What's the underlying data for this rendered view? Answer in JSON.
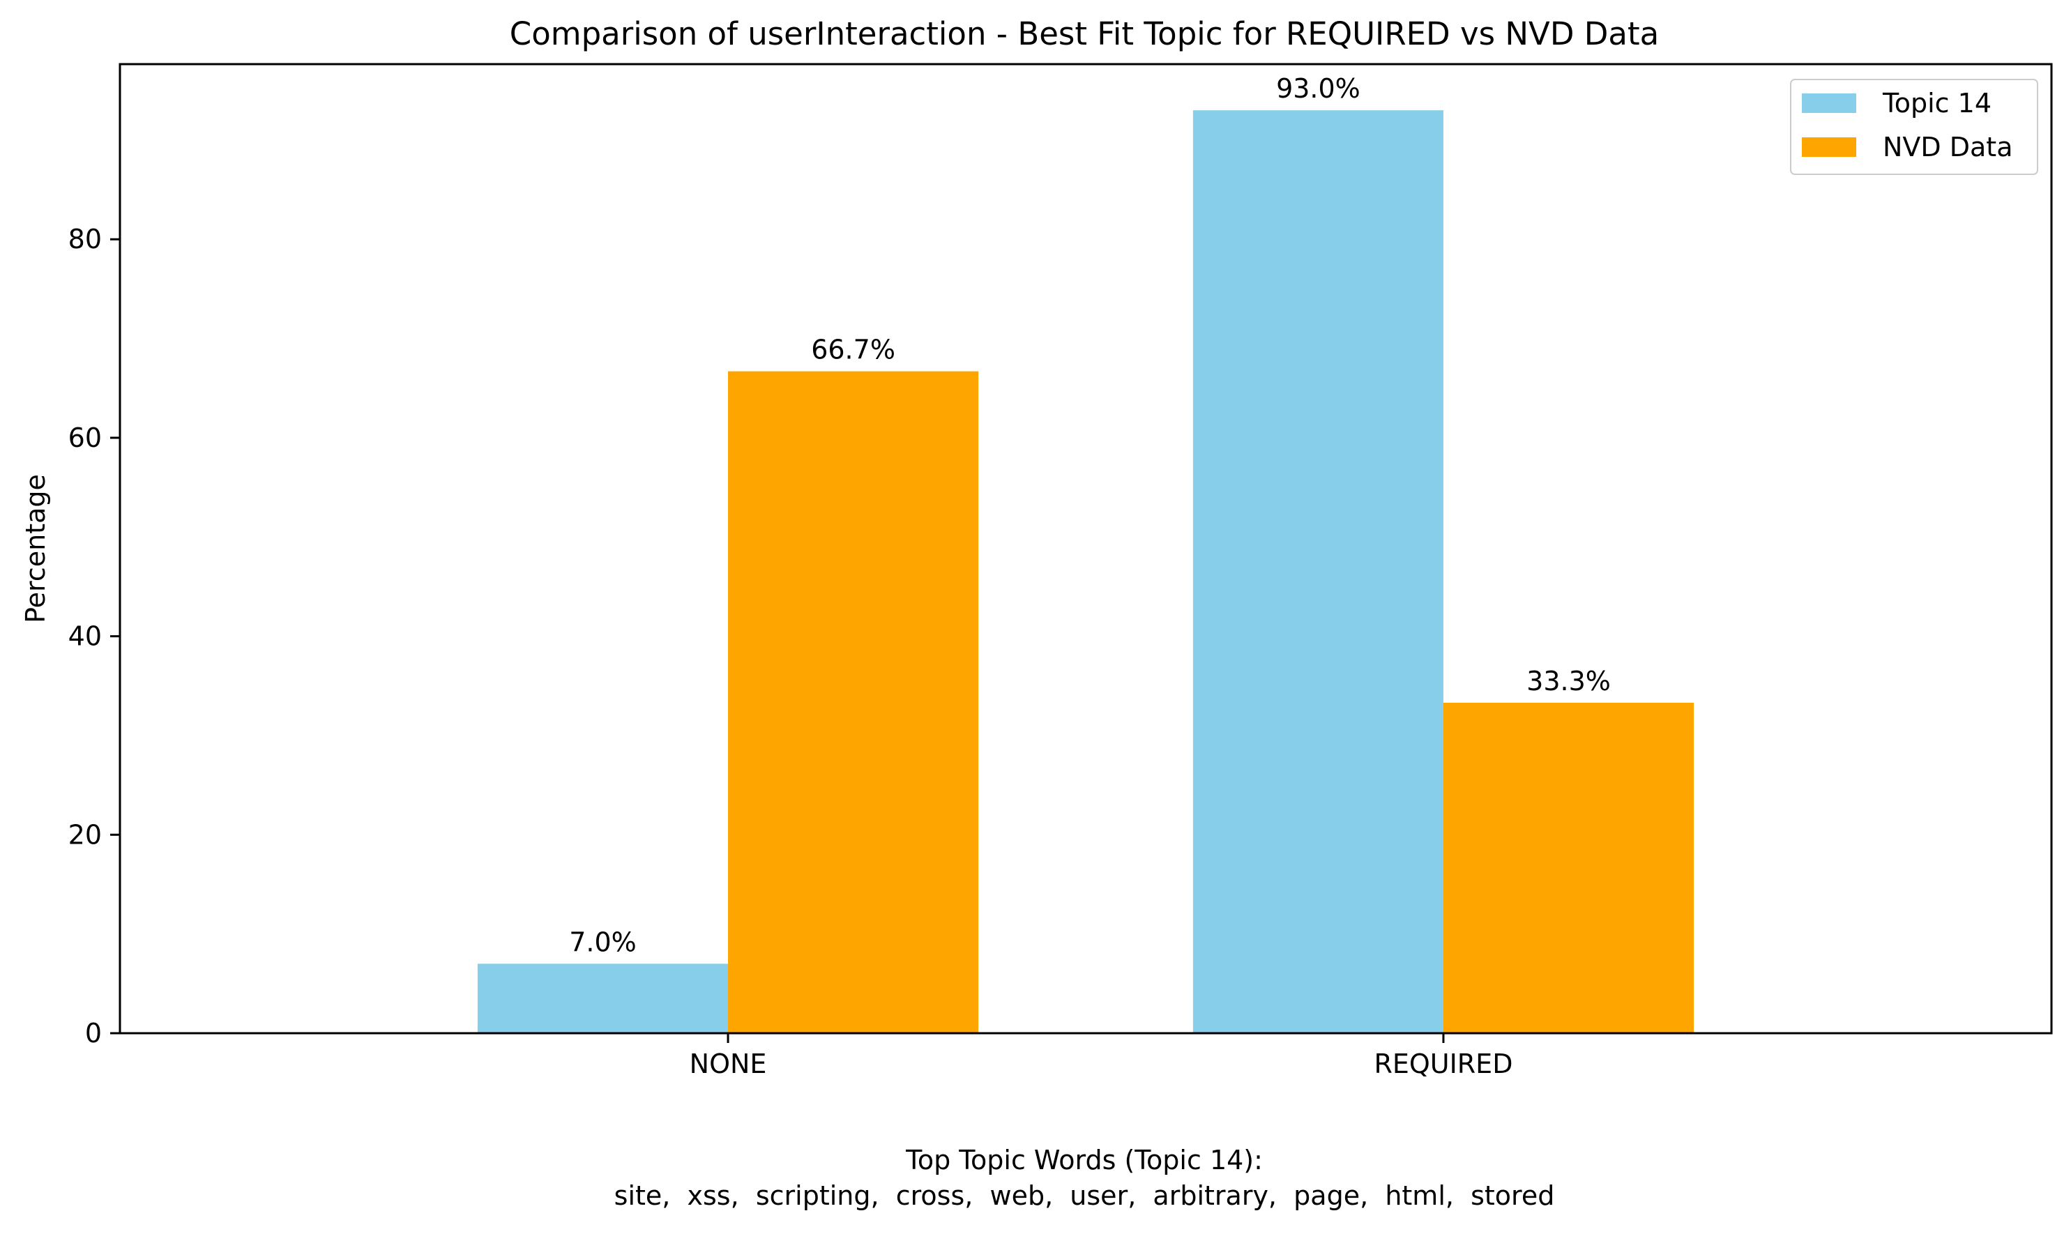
{
  "chart_data": {
    "type": "bar",
    "title": "Comparison of userInteraction - Best Fit Topic for REQUIRED vs NVD Data",
    "xlabel": "",
    "ylabel": "Percentage",
    "categories": [
      "NONE",
      "REQUIRED"
    ],
    "series": [
      {
        "name": "Topic 14",
        "color": "#87CEEB",
        "values": [
          7.0,
          93.0
        ],
        "labels": [
          "7.0%",
          "93.0%"
        ]
      },
      {
        "name": "NVD Data",
        "color": "#FFA500",
        "values": [
          66.7,
          33.3
        ],
        "labels": [
          "66.7%",
          "33.3%"
        ]
      }
    ],
    "ylim": [
      0,
      97.65
    ],
    "yticks": [
      0,
      20,
      40,
      60,
      80
    ],
    "grid": false,
    "legend": "top-right",
    "footnote": {
      "heading": "Top Topic Words (Topic 14):",
      "words": "site,  xss,  scripting,  cross,  web,  user,  arbitrary,  page,  html,  stored"
    }
  }
}
